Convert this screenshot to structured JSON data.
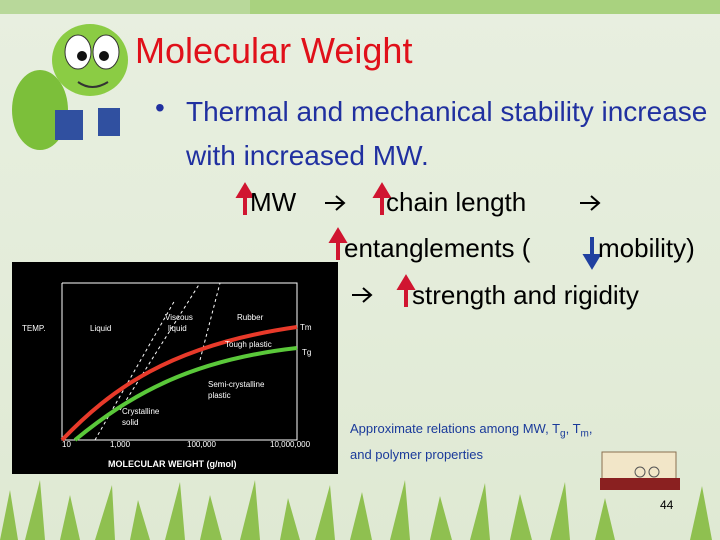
{
  "slide": {
    "title": "Molecular Weight",
    "bullet": "Thermal and mechanical stability increase with increased MW.",
    "chain": [
      "MW",
      "chain length",
      "entanglements (",
      "mobility)",
      "strength and rigidity"
    ],
    "caption": [
      "Approximate relations among MW, T",
      "g",
      ", T",
      "m",
      ",",
      "and polymer properties"
    ],
    "page_number": "44"
  },
  "figure": {
    "y_label": "TEMP.",
    "x_label": "MOLECULAR WEIGHT (g/mol)",
    "x_ticks": [
      "10",
      "1,000",
      "100,000",
      "10,000,000"
    ],
    "regions": [
      "Liquid",
      "Viscous",
      "liquid",
      "Rubber",
      "Tough plastic",
      "Semi-crystalline",
      "plastic",
      "Crystalline",
      "solid"
    ],
    "curve_labels": [
      "Tm",
      "Tg"
    ]
  }
}
